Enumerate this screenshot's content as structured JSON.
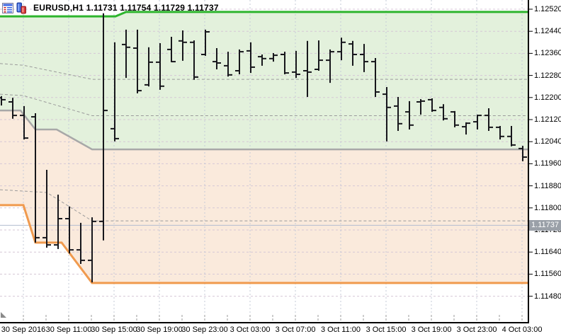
{
  "window": {
    "title_ohlc": "EURUSD,H1 1.11731 1.11754 1.11729 1.11737"
  },
  "chart_data": {
    "type": "ohlc-bars",
    "symbol": "EURUSD",
    "timeframe": "H1",
    "quote": {
      "open": "1.11731",
      "high": "1.11754",
      "low": "1.11729",
      "close": "1.11737"
    },
    "bid_price": 1.11737,
    "bid_label": "1.11737",
    "y_axis": {
      "min": 1.1148,
      "max": 1.1252,
      "step": 0.0008,
      "labels": [
        "1.12520",
        "1.12440",
        "1.12360",
        "1.12280",
        "1.12200",
        "1.12120",
        "1.12040",
        "1.11960",
        "1.11880",
        "1.11800",
        "1.11720",
        "1.11640",
        "1.11560",
        "1.11480"
      ]
    },
    "x_axis": {
      "labels": [
        "30 Sep 2016",
        "30 Sep 11:00",
        "30 Sep 15:00",
        "30 Sep 19:00",
        "30 Sep 23:00",
        "3 Oct 03:00",
        "3 Oct 07:00",
        "3 Oct 11:00",
        "3 Oct 15:00",
        "3 Oct 19:00",
        "3 Oct 23:00",
        "4 Oct 03:00"
      ]
    },
    "bars": [
      {
        "o": 1.12199,
        "h": 1.12205,
        "l": 1.12171,
        "c": 1.12192
      },
      {
        "o": 1.12184,
        "h": 1.12199,
        "l": 1.12123,
        "c": 1.12135
      },
      {
        "o": 1.12135,
        "h": 1.12169,
        "l": 1.12048,
        "c": 1.12053
      },
      {
        "o": 1.1213,
        "h": 1.12143,
        "l": 1.11674,
        "c": 1.11692
      },
      {
        "o": 1.11692,
        "h": 1.11938,
        "l": 1.11656,
        "c": 1.11666
      },
      {
        "o": 1.11666,
        "h": 1.11848,
        "l": 1.11651,
        "c": 1.11761
      },
      {
        "o": 1.11761,
        "h": 1.11805,
        "l": 1.11635,
        "c": 1.11648
      },
      {
        "o": 1.11648,
        "h": 1.11746,
        "l": 1.11597,
        "c": 1.1161
      },
      {
        "o": 1.1161,
        "h": 1.11766,
        "l": 1.1153,
        "c": 1.11751
      },
      {
        "o": 1.11751,
        "h": 1.12505,
        "l": 1.11682,
        "c": 1.12153
      },
      {
        "o": 1.12087,
        "h": 1.124,
        "l": 1.12041,
        "c": 1.12051
      },
      {
        "o": 1.12392,
        "h": 1.12446,
        "l": 1.12271,
        "c": 1.12382
      },
      {
        "o": 1.12379,
        "h": 1.12446,
        "l": 1.12215,
        "c": 1.12225
      },
      {
        "o": 1.12246,
        "h": 1.12382,
        "l": 1.1224,
        "c": 1.12328
      },
      {
        "o": 1.12328,
        "h": 1.12397,
        "l": 1.12228,
        "c": 1.12241
      },
      {
        "o": 1.12374,
        "h": 1.1242,
        "l": 1.12328,
        "c": 1.1233
      },
      {
        "o": 1.12405,
        "h": 1.12443,
        "l": 1.12333,
        "c": 1.124
      },
      {
        "o": 1.124,
        "h": 1.12407,
        "l": 1.12264,
        "c": 1.12274
      },
      {
        "o": 1.12356,
        "h": 1.12446,
        "l": 1.12351,
        "c": 1.12438
      },
      {
        "o": 1.1233,
        "h": 1.12379,
        "l": 1.12302,
        "c": 1.12325
      },
      {
        "o": 1.12315,
        "h": 1.12366,
        "l": 1.12276,
        "c": 1.12282
      },
      {
        "o": 1.12297,
        "h": 1.12374,
        "l": 1.12284,
        "c": 1.12366
      },
      {
        "o": 1.12369,
        "h": 1.124,
        "l": 1.12289,
        "c": 1.1231
      },
      {
        "o": 1.12348,
        "h": 1.12356,
        "l": 1.12315,
        "c": 1.12341
      },
      {
        "o": 1.12341,
        "h": 1.12361,
        "l": 1.1233,
        "c": 1.12353
      },
      {
        "o": 1.12356,
        "h": 1.12366,
        "l": 1.12284,
        "c": 1.12289
      },
      {
        "o": 1.12292,
        "h": 1.12369,
        "l": 1.12271,
        "c": 1.12284
      },
      {
        "o": 1.12297,
        "h": 1.12405,
        "l": 1.12202,
        "c": 1.12292
      },
      {
        "o": 1.12302,
        "h": 1.12407,
        "l": 1.12297,
        "c": 1.12335
      },
      {
        "o": 1.12335,
        "h": 1.12374,
        "l": 1.12253,
        "c": 1.12366
      },
      {
        "o": 1.12366,
        "h": 1.12417,
        "l": 1.12335,
        "c": 1.124
      },
      {
        "o": 1.12394,
        "h": 1.12405,
        "l": 1.12315,
        "c": 1.12356
      },
      {
        "o": 1.12356,
        "h": 1.12394,
        "l": 1.12292,
        "c": 1.1233
      },
      {
        "o": 1.1233,
        "h": 1.12343,
        "l": 1.12202,
        "c": 1.1222
      },
      {
        "o": 1.12212,
        "h": 1.12238,
        "l": 1.12041,
        "c": 1.12164
      },
      {
        "o": 1.12169,
        "h": 1.12202,
        "l": 1.12079,
        "c": 1.12105
      },
      {
        "o": 1.12148,
        "h": 1.12187,
        "l": 1.12084,
        "c": 1.121
      },
      {
        "o": 1.12184,
        "h": 1.12194,
        "l": 1.12138,
        "c": 1.12187
      },
      {
        "o": 1.12192,
        "h": 1.12197,
        "l": 1.12148,
        "c": 1.12153
      },
      {
        "o": 1.12164,
        "h": 1.12176,
        "l": 1.12117,
        "c": 1.12123
      },
      {
        "o": 1.12148,
        "h": 1.12151,
        "l": 1.12092,
        "c": 1.121
      },
      {
        "o": 1.12094,
        "h": 1.1211,
        "l": 1.12066,
        "c": 1.12107
      },
      {
        "o": 1.12112,
        "h": 1.12138,
        "l": 1.12084,
        "c": 1.12135
      },
      {
        "o": 1.12135,
        "h": 1.12161,
        "l": 1.12079,
        "c": 1.12092
      },
      {
        "o": 1.12092,
        "h": 1.12097,
        "l": 1.12048,
        "c": 1.12059
      },
      {
        "o": 1.12059,
        "h": 1.12097,
        "l": 1.12023,
        "c": 1.12028
      },
      {
        "o": 1.12015,
        "h": 1.12025,
        "l": 1.11969,
        "c": 1.11984
      }
    ],
    "indicator": {
      "name": "donchian-channel-zones",
      "upper_line": [
        [
          0,
          1.12494
        ],
        [
          163,
          1.12494
        ],
        [
          178,
          1.1251
        ],
        [
          747,
          1.1251
        ]
      ],
      "middle_line": [
        [
          0,
          1.12153
        ],
        [
          29,
          1.12153
        ],
        [
          50,
          1.12084
        ],
        [
          80,
          1.12084
        ],
        [
          130,
          1.12012
        ],
        [
          747,
          1.12012
        ]
      ],
      "lower_line": [
        [
          0,
          1.1181
        ],
        [
          33,
          1.1181
        ],
        [
          50,
          1.11674
        ],
        [
          87,
          1.11674
        ],
        [
          130,
          1.11528
        ],
        [
          747,
          1.11528
        ]
      ],
      "dashed_lines": [
        [
          [
            0,
            1.12323
          ],
          [
            33,
            1.12317
          ],
          [
            130,
            1.12266
          ],
          [
            747,
            1.12266
          ]
        ],
        [
          [
            0,
            1.12212
          ],
          [
            33,
            1.12207
          ],
          [
            130,
            1.12134
          ],
          [
            747,
            1.12134
          ]
        ],
        [
          [
            0,
            1.11866
          ],
          [
            66,
            1.11856
          ],
          [
            130,
            1.11753
          ],
          [
            747,
            1.11753
          ]
        ]
      ]
    },
    "colors": {
      "zone_upper": "#e3f1dc",
      "zone_lower": "#faeadc",
      "upper_line": "#2db52d",
      "middle_line": "#a8a8a8",
      "lower_line": "#f09a4e",
      "bars": "#17171c",
      "bid_line": "#b3bdd0",
      "grid_h": "#d5c7d5",
      "grid_v": "#c5cbd7",
      "dashed": "#9b9b9b",
      "price_box_bg": "#9aa0a8",
      "price_box_text": "#ffffff",
      "axis_border": "#000000"
    }
  }
}
